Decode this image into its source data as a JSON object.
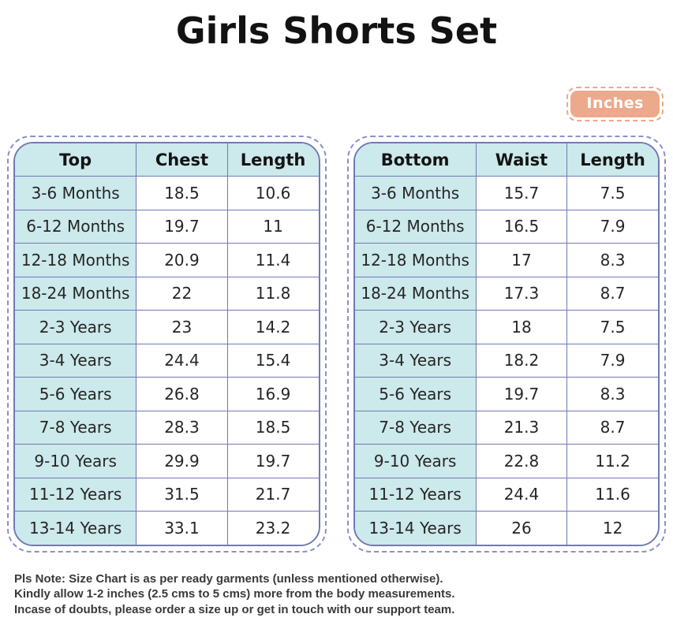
{
  "title": "Girls Shorts Set",
  "unit_badge": {
    "label": "Inches"
  },
  "colors": {
    "cell_teal": "#cce9eb",
    "table_border": "#7179b5",
    "dashed_outline": "#8a90c8",
    "badge_peach": "#eda98c",
    "badge_text": "#ffffff",
    "title_text": "#121212",
    "note_text": "#3a3a3a"
  },
  "tables": [
    {
      "name": "top-size-table",
      "headers": [
        "Top",
        "Chest",
        "Length"
      ],
      "rows": [
        [
          "3-6 Months",
          "18.5",
          "10.6"
        ],
        [
          "6-12 Months",
          "19.7",
          "11"
        ],
        [
          "12-18 Months",
          "20.9",
          "11.4"
        ],
        [
          "18-24 Months",
          "22",
          "11.8"
        ],
        [
          "2-3 Years",
          "23",
          "14.2"
        ],
        [
          "3-4 Years",
          "24.4",
          "15.4"
        ],
        [
          "5-6 Years",
          "26.8",
          "16.9"
        ],
        [
          "7-8 Years",
          "28.3",
          "18.5"
        ],
        [
          "9-10 Years",
          "29.9",
          "19.7"
        ],
        [
          "11-12 Years",
          "31.5",
          "21.7"
        ],
        [
          "13-14 Years",
          "33.1",
          "23.2"
        ]
      ]
    },
    {
      "name": "bottom-size-table",
      "headers": [
        "Bottom",
        "Waist",
        "Length"
      ],
      "rows": [
        [
          "3-6 Months",
          "15.7",
          "7.5"
        ],
        [
          "6-12 Months",
          "16.5",
          "7.9"
        ],
        [
          "12-18 Months",
          "17",
          "8.3"
        ],
        [
          "18-24 Months",
          "17.3",
          "8.7"
        ],
        [
          "2-3 Years",
          "18",
          "7.5"
        ],
        [
          "3-4 Years",
          "18.2",
          "7.9"
        ],
        [
          "5-6 Years",
          "19.7",
          "8.3"
        ],
        [
          "7-8 Years",
          "21.3",
          "8.7"
        ],
        [
          "9-10 Years",
          "22.8",
          "11.2"
        ],
        [
          "11-12 Years",
          "24.4",
          "11.6"
        ],
        [
          "13-14 Years",
          "26",
          "12"
        ]
      ]
    }
  ],
  "note_lines": [
    "Pls Note: Size Chart is as per ready garments (unless mentioned otherwise).",
    "Kindly allow 1-2 inches (2.5 cms to 5 cms) more from the body measurements.",
    "Incase of doubts, please order a size up or get in touch with our support team."
  ],
  "chart_data": [
    {
      "type": "table",
      "title": "Girls Shorts Set - Top (Inches)",
      "columns": [
        "Top",
        "Chest",
        "Length"
      ],
      "rows": [
        {
          "size": "3-6 Months",
          "chest": 18.5,
          "length": 10.6
        },
        {
          "size": "6-12 Months",
          "chest": 19.7,
          "length": 11
        },
        {
          "size": "12-18 Months",
          "chest": 20.9,
          "length": 11.4
        },
        {
          "size": "18-24 Months",
          "chest": 22,
          "length": 11.8
        },
        {
          "size": "2-3 Years",
          "chest": 23,
          "length": 14.2
        },
        {
          "size": "3-4 Years",
          "chest": 24.4,
          "length": 15.4
        },
        {
          "size": "5-6 Years",
          "chest": 26.8,
          "length": 16.9
        },
        {
          "size": "7-8 Years",
          "chest": 28.3,
          "length": 18.5
        },
        {
          "size": "9-10 Years",
          "chest": 29.9,
          "length": 19.7
        },
        {
          "size": "11-12 Years",
          "chest": 31.5,
          "length": 21.7
        },
        {
          "size": "13-14 Years",
          "chest": 33.1,
          "length": 23.2
        }
      ]
    },
    {
      "type": "table",
      "title": "Girls Shorts Set - Bottom (Inches)",
      "columns": [
        "Bottom",
        "Waist",
        "Length"
      ],
      "rows": [
        {
          "size": "3-6 Months",
          "waist": 15.7,
          "length": 7.5
        },
        {
          "size": "6-12 Months",
          "waist": 16.5,
          "length": 7.9
        },
        {
          "size": "12-18 Months",
          "waist": 17,
          "length": 8.3
        },
        {
          "size": "18-24 Months",
          "waist": 17.3,
          "length": 8.7
        },
        {
          "size": "2-3 Years",
          "waist": 18,
          "length": 7.5
        },
        {
          "size": "3-4 Years",
          "waist": 18.2,
          "length": 7.9
        },
        {
          "size": "5-6 Years",
          "waist": 19.7,
          "length": 8.3
        },
        {
          "size": "7-8 Years",
          "waist": 21.3,
          "length": 8.7
        },
        {
          "size": "9-10 Years",
          "waist": 22.8,
          "length": 11.2
        },
        {
          "size": "11-12 Years",
          "waist": 24.4,
          "length": 11.6
        },
        {
          "size": "13-14 Years",
          "waist": 26,
          "length": 12
        }
      ]
    }
  ]
}
